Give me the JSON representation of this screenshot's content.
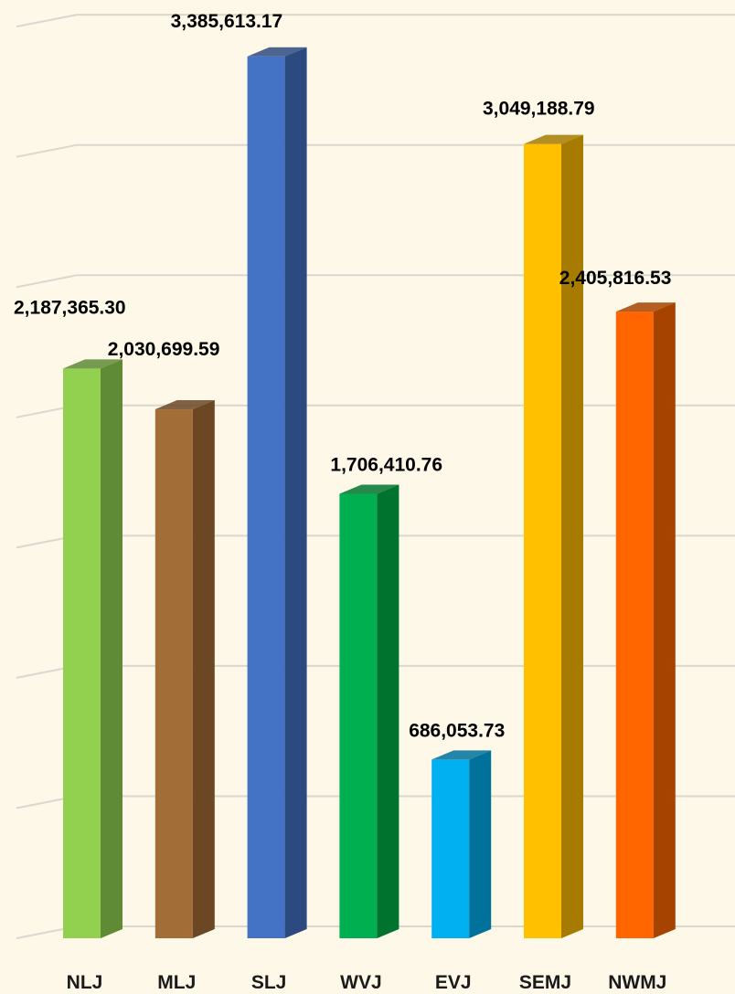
{
  "chart_data": {
    "type": "bar",
    "categories": [
      "NLJ",
      "MLJ",
      "SLJ",
      "WVJ",
      "EVJ",
      "SEMJ",
      "NWMJ"
    ],
    "values": [
      2187365.3,
      2030699.59,
      3385613.17,
      1706410.76,
      686053.73,
      3049188.79,
      2405816.53
    ],
    "data_labels": [
      "2,187,365.30",
      "2,030,699.59",
      "3,385,613.17",
      "1,706,410.76",
      "686,053.73",
      "3,049,188.79",
      "2,405,816.53"
    ],
    "colors": [
      "#92d050",
      "#a36d37",
      "#4472c4",
      "#00b050",
      "#00b0f0",
      "#ffc000",
      "#ff6600"
    ],
    "side_colors": [
      "#5f8a36",
      "#6b4724",
      "#2c4a80",
      "#00742f",
      "#00719a",
      "#a67b00",
      "#a64300"
    ],
    "title": "",
    "xlabel": "",
    "ylabel": "",
    "ylim": [
      0,
      3500000
    ],
    "grid": true,
    "legend": "none",
    "three_d": true
  }
}
